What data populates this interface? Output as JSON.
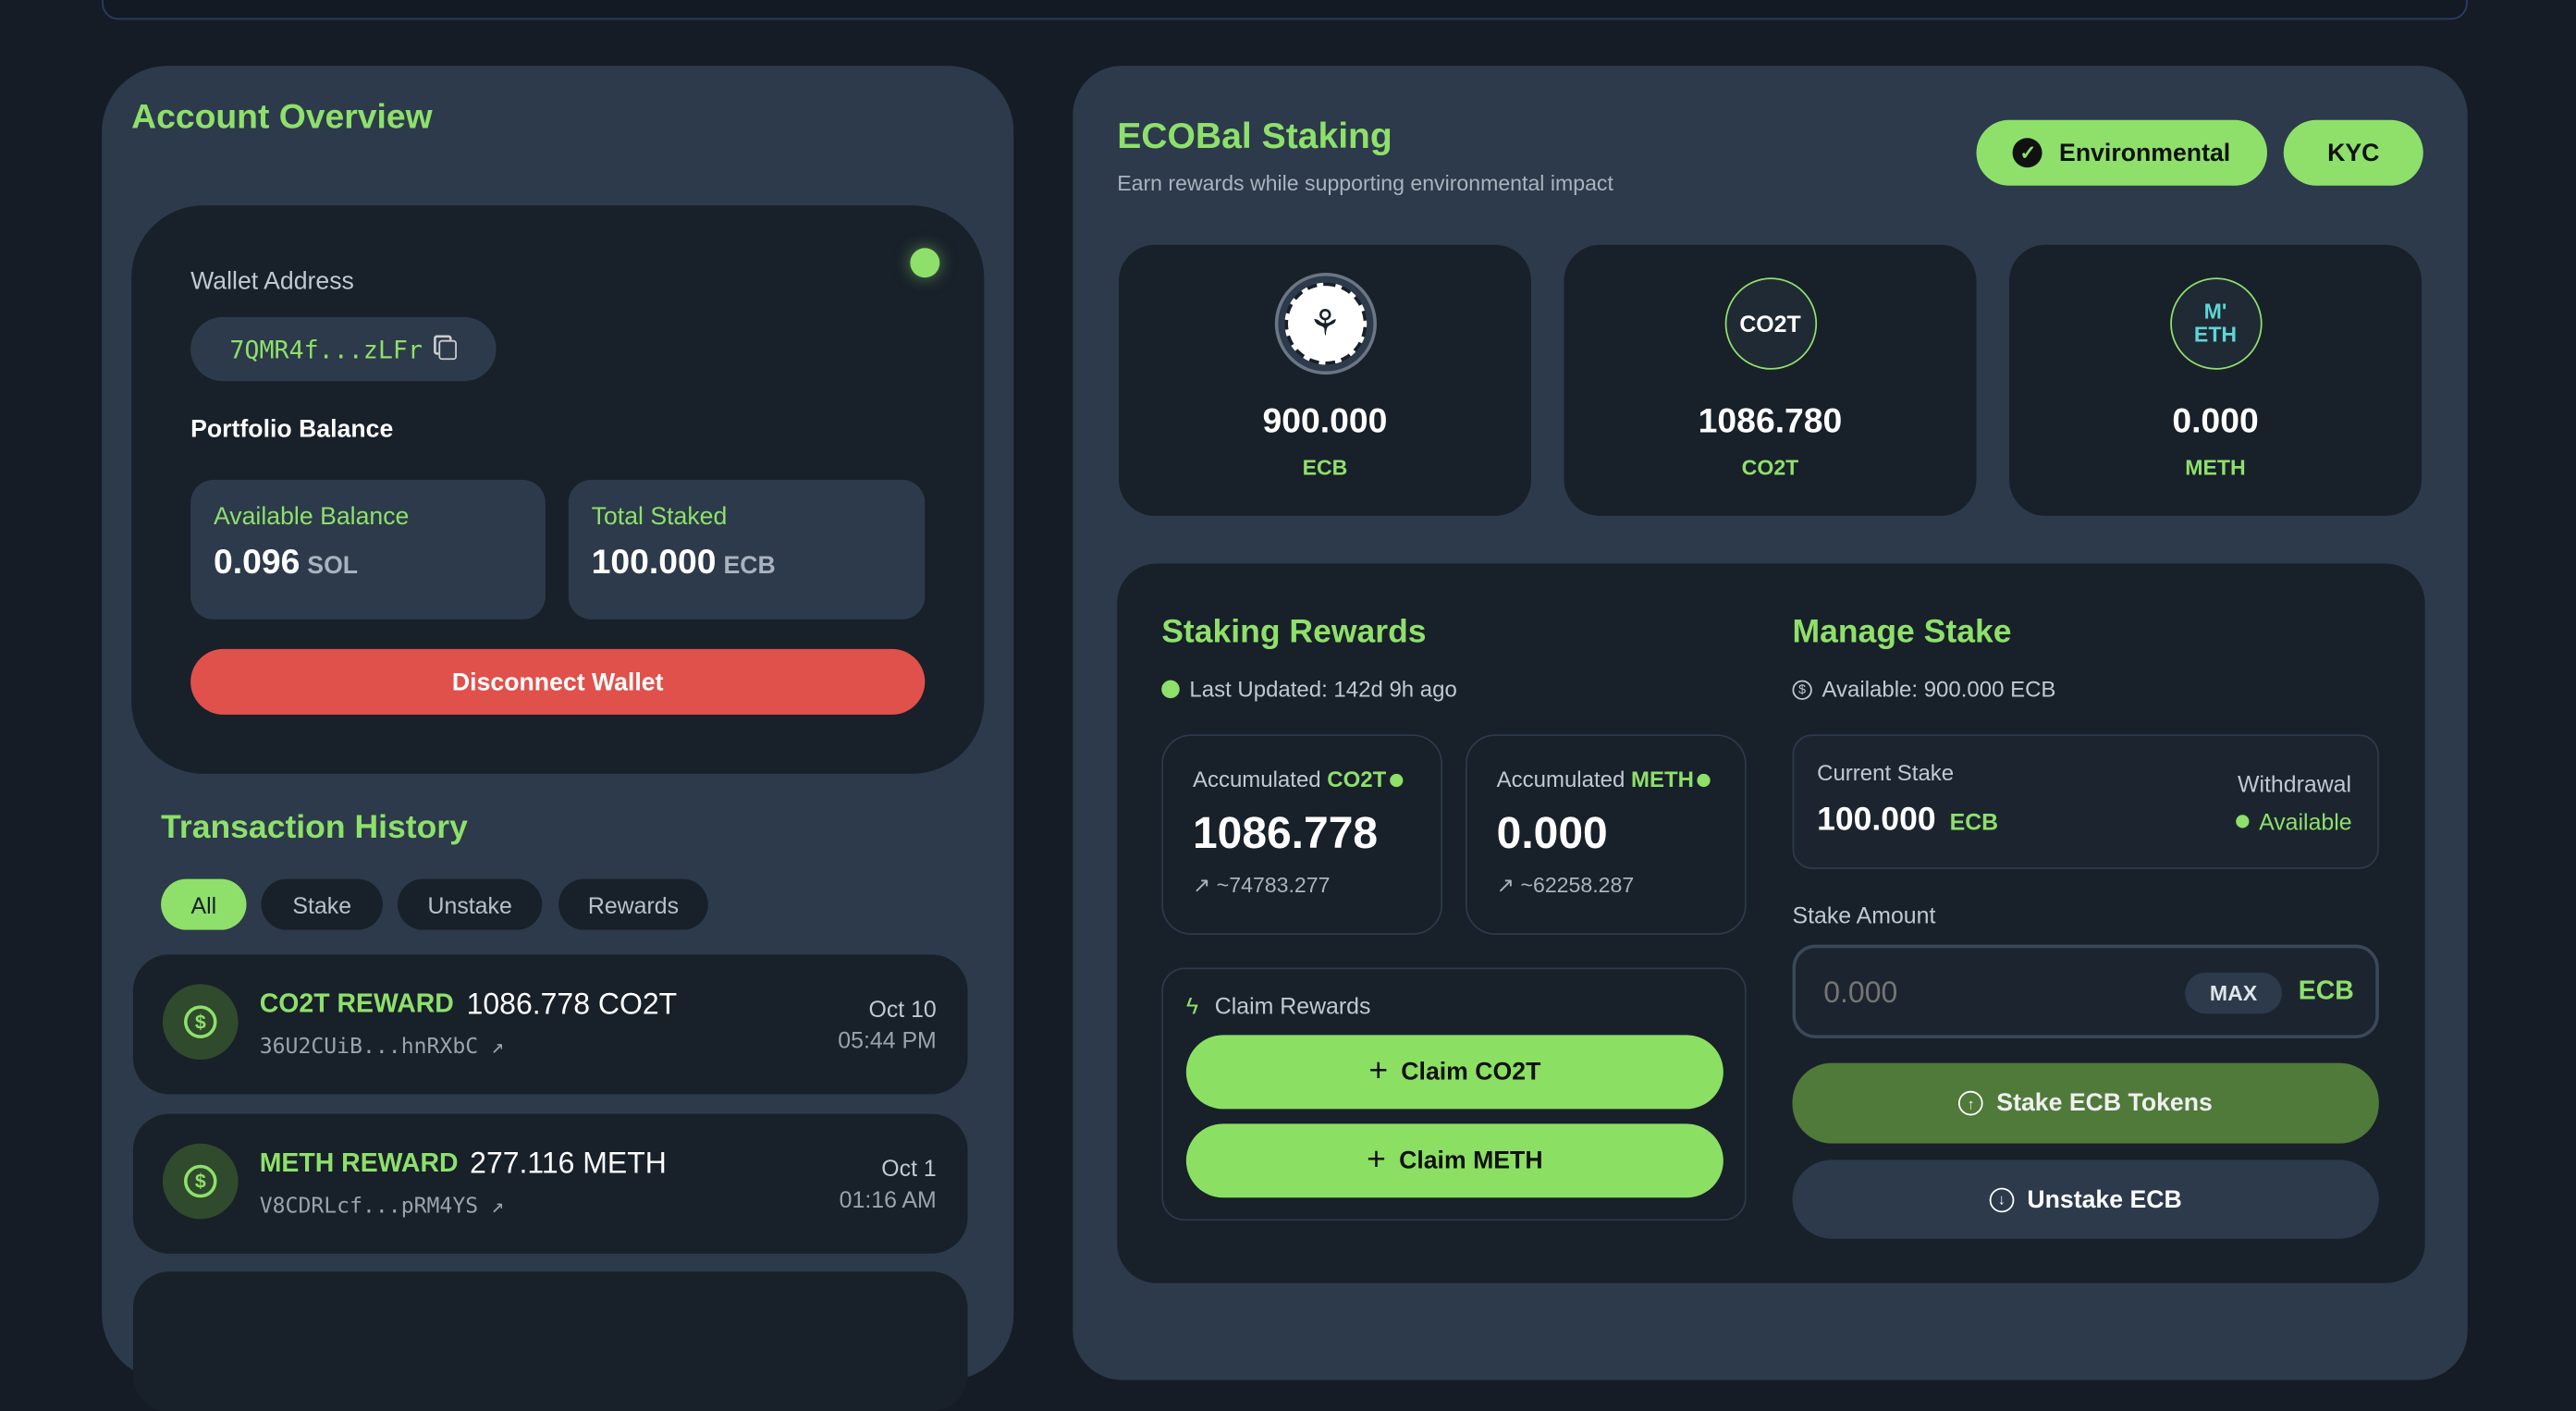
{
  "colors": {
    "accent": "#8ee06a",
    "danger": "#e0514c",
    "background": "#151c25",
    "panel": "#2c3a4b",
    "card": "#18202a"
  },
  "account": {
    "title": "Account Overview",
    "wallet_label": "Wallet Address",
    "wallet_address": "7QMR4f...zLFr",
    "portfolio_label": "Portfolio Balance",
    "available_label": "Available Balance",
    "available_value": "0.096",
    "available_unit": "SOL",
    "staked_label": "Total Staked",
    "staked_value": "100.000",
    "staked_unit": "ECB",
    "disconnect": "Disconnect Wallet"
  },
  "history": {
    "title": "Transaction History",
    "filters": [
      "All",
      "Stake",
      "Unstake",
      "Rewards"
    ],
    "active_filter": "All",
    "items": [
      {
        "type": "CO2T REWARD",
        "amount": "1086.778 CO2T",
        "hash": "36U2CUiB...hnRXbC",
        "date": "Oct 10",
        "time": "05:44 PM"
      },
      {
        "type": "METH REWARD",
        "amount": "277.116 METH",
        "hash": "V8CDRLcf...pRM4YS",
        "date": "Oct 1",
        "time": "01:16 AM"
      }
    ]
  },
  "staking": {
    "title": "ECOBal Staking",
    "subtitle": "Earn rewards while supporting environmental impact",
    "badges": [
      "Environmental",
      "KYC"
    ],
    "tokens": [
      {
        "value": "900.000",
        "symbol": "ECB",
        "logo": "ECB"
      },
      {
        "value": "1086.780",
        "symbol": "CO2T",
        "logo": "CO2T"
      },
      {
        "value": "0.000",
        "symbol": "METH",
        "logo": "M' ETH"
      }
    ],
    "rewards": {
      "title": "Staking Rewards",
      "updated": "Last Updated: 142d 9h ago",
      "acc": [
        {
          "label": "Accumulated ",
          "token": "CO2T",
          "value": "1086.778",
          "est": "~74783.277"
        },
        {
          "label": "Accumulated ",
          "token": "METH",
          "value": "0.000",
          "est": "~62258.287"
        }
      ],
      "claim_title": "Claim Rewards",
      "claim_co2t": "Claim CO2T",
      "claim_meth": "Claim METH"
    },
    "manage": {
      "title": "Manage Stake",
      "available": "Available: 900.000 ECB",
      "current_label": "Current Stake",
      "current_value": "100.000",
      "current_unit": "ECB",
      "withdrawal_label": "Withdrawal",
      "withdrawal_status": "Available",
      "amount_label": "Stake Amount",
      "amount_placeholder": "0.000",
      "max": "MAX",
      "unit": "ECB",
      "stake_btn": "Stake ECB Tokens",
      "unstake_btn": "Unstake ECB"
    }
  }
}
